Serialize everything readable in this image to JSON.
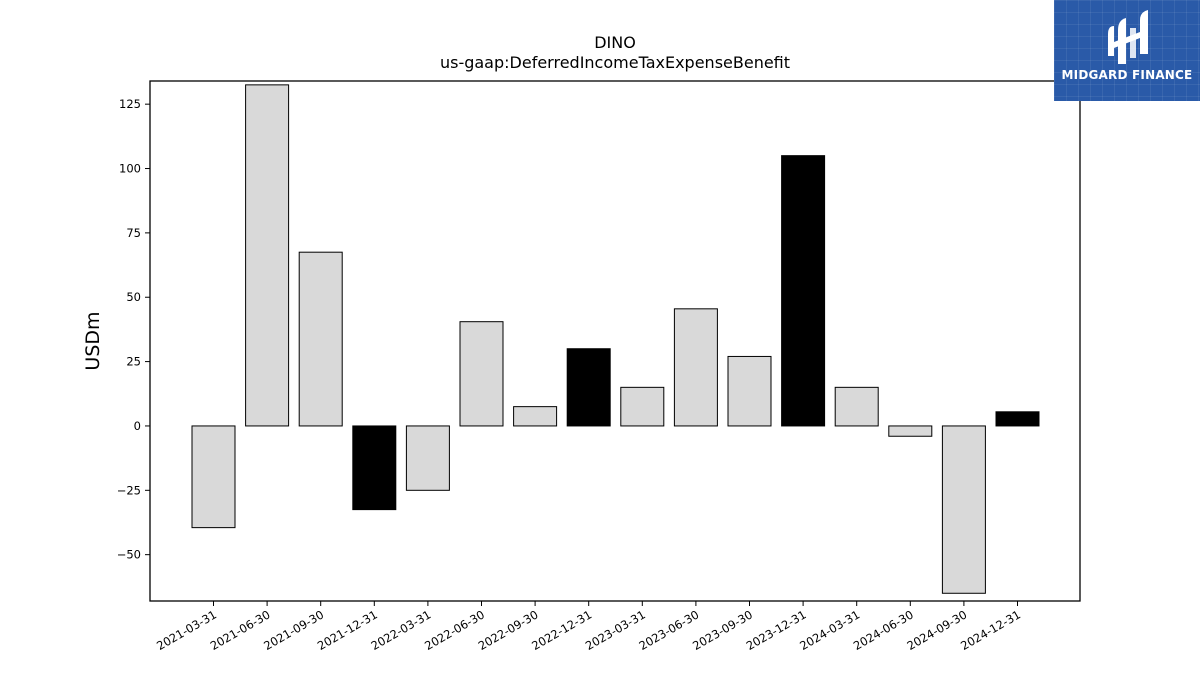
{
  "chart_data": {
    "type": "bar",
    "title": "DINO",
    "subtitle": "us-gaap:DeferredIncomeTaxExpenseBenefit",
    "xlabel": "",
    "ylabel": "USDm",
    "ylim": [
      -68,
      134
    ],
    "yticks": [
      -50,
      -25,
      0,
      25,
      50,
      75,
      100,
      125
    ],
    "grid": false,
    "categories": [
      "2021-03-31",
      "2021-06-30",
      "2021-09-30",
      "2021-12-31",
      "2022-03-31",
      "2022-06-30",
      "2022-09-30",
      "2022-12-31",
      "2023-03-31",
      "2023-06-30",
      "2023-09-30",
      "2023-12-31",
      "2024-03-31",
      "2024-06-30",
      "2024-09-30",
      "2024-12-31"
    ],
    "values": [
      -39.5,
      132.5,
      67.5,
      -32.5,
      -25,
      40.5,
      7.5,
      30,
      15,
      45.5,
      27,
      105,
      15,
      -4,
      -65,
      5.5
    ],
    "highlighted": [
      false,
      false,
      false,
      true,
      false,
      false,
      false,
      true,
      false,
      false,
      false,
      true,
      false,
      false,
      false,
      true
    ],
    "colors": {
      "normal": "#d9d9d9",
      "highlight": "#000000",
      "edge": "#000000"
    }
  },
  "logo": {
    "text": "MIDGARD FINANCE",
    "background": "#2a5aa8"
  }
}
